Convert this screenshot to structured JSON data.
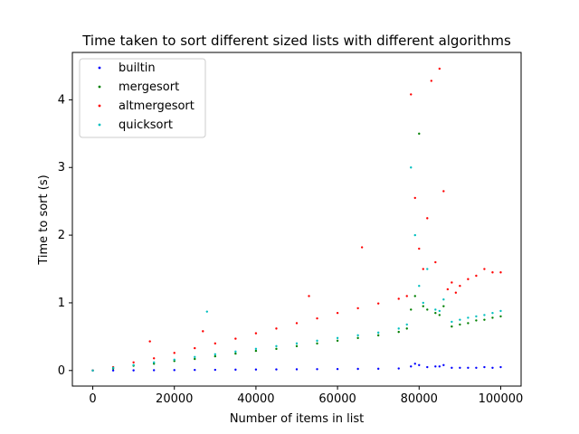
{
  "chart_data": {
    "type": "scatter",
    "title": "Time taken to sort different sized lists with different algorithms",
    "xlabel": "Number of items in list",
    "ylabel": "Time to sort (s)",
    "xlim": [
      -5000,
      105000
    ],
    "ylim": [
      -0.23,
      4.7
    ],
    "xticks": [
      "0",
      "20000",
      "40000",
      "60000",
      "80000",
      "100000"
    ],
    "yticks": [
      "0",
      "1",
      "2",
      "3",
      "4"
    ],
    "grid": false,
    "legend_position": "top-left",
    "series": [
      {
        "name": "builtin",
        "color": "#0000ff",
        "points": [
          [
            0,
            0
          ],
          [
            5000,
            0.001
          ],
          [
            10000,
            0.002
          ],
          [
            15000,
            0.004
          ],
          [
            20000,
            0.006
          ],
          [
            25000,
            0.008
          ],
          [
            30000,
            0.01
          ],
          [
            35000,
            0.012
          ],
          [
            40000,
            0.014
          ],
          [
            45000,
            0.016
          ],
          [
            50000,
            0.018
          ],
          [
            55000,
            0.02
          ],
          [
            60000,
            0.022
          ],
          [
            65000,
            0.024
          ],
          [
            70000,
            0.026
          ],
          [
            75000,
            0.03
          ],
          [
            78000,
            0.06
          ],
          [
            79000,
            0.1
          ],
          [
            80000,
            0.08
          ],
          [
            82000,
            0.05
          ],
          [
            84000,
            0.06
          ],
          [
            85000,
            0.06
          ],
          [
            86000,
            0.08
          ],
          [
            88000,
            0.04
          ],
          [
            90000,
            0.04
          ],
          [
            92000,
            0.04
          ],
          [
            94000,
            0.04
          ],
          [
            96000,
            0.05
          ],
          [
            98000,
            0.04
          ],
          [
            100000,
            0.05
          ]
        ]
      },
      {
        "name": "mergesort",
        "color": "#008000",
        "points": [
          [
            0,
            0
          ],
          [
            5000,
            0.03
          ],
          [
            10000,
            0.07
          ],
          [
            15000,
            0.1
          ],
          [
            20000,
            0.14
          ],
          [
            25000,
            0.17
          ],
          [
            30000,
            0.21
          ],
          [
            35000,
            0.25
          ],
          [
            40000,
            0.29
          ],
          [
            45000,
            0.32
          ],
          [
            50000,
            0.36
          ],
          [
            55000,
            0.4
          ],
          [
            60000,
            0.44
          ],
          [
            65000,
            0.48
          ],
          [
            70000,
            0.52
          ],
          [
            75000,
            0.57
          ],
          [
            77000,
            0.62
          ],
          [
            78000,
            0.9
          ],
          [
            79000,
            1.1
          ],
          [
            80000,
            3.5
          ],
          [
            81000,
            0.95
          ],
          [
            82000,
            0.9
          ],
          [
            84000,
            0.85
          ],
          [
            85000,
            0.82
          ],
          [
            86000,
            0.95
          ],
          [
            88000,
            0.65
          ],
          [
            90000,
            0.68
          ],
          [
            92000,
            0.7
          ],
          [
            94000,
            0.74
          ],
          [
            96000,
            0.75
          ],
          [
            98000,
            0.78
          ],
          [
            100000,
            0.8
          ]
        ]
      },
      {
        "name": "altmergesort",
        "color": "#ff0000",
        "points": [
          [
            0,
            0
          ],
          [
            5000,
            0.05
          ],
          [
            10000,
            0.12
          ],
          [
            14000,
            0.43
          ],
          [
            15000,
            0.18
          ],
          [
            20000,
            0.26
          ],
          [
            25000,
            0.33
          ],
          [
            27000,
            0.58
          ],
          [
            30000,
            0.4
          ],
          [
            35000,
            0.47
          ],
          [
            40000,
            0.55
          ],
          [
            45000,
            0.62
          ],
          [
            50000,
            0.7
          ],
          [
            53000,
            1.1
          ],
          [
            55000,
            0.77
          ],
          [
            60000,
            0.85
          ],
          [
            65000,
            0.92
          ],
          [
            66000,
            1.82
          ],
          [
            70000,
            0.99
          ],
          [
            75000,
            1.06
          ],
          [
            77000,
            1.1
          ],
          [
            78000,
            4.08
          ],
          [
            79000,
            2.55
          ],
          [
            80000,
            1.8
          ],
          [
            81000,
            1.5
          ],
          [
            82000,
            2.25
          ],
          [
            83000,
            4.28
          ],
          [
            84000,
            1.6
          ],
          [
            85000,
            4.46
          ],
          [
            86000,
            2.65
          ],
          [
            87000,
            1.2
          ],
          [
            88000,
            1.3
          ],
          [
            89000,
            1.15
          ],
          [
            90000,
            1.25
          ],
          [
            92000,
            1.35
          ],
          [
            94000,
            1.4
          ],
          [
            96000,
            1.5
          ],
          [
            98000,
            1.45
          ],
          [
            100000,
            1.45
          ]
        ]
      },
      {
        "name": "quicksort",
        "color": "#00bfbf",
        "points": [
          [
            0,
            0
          ],
          [
            5000,
            0.04
          ],
          [
            10000,
            0.08
          ],
          [
            15000,
            0.12
          ],
          [
            20000,
            0.16
          ],
          [
            25000,
            0.2
          ],
          [
            28000,
            0.87
          ],
          [
            30000,
            0.24
          ],
          [
            35000,
            0.28
          ],
          [
            40000,
            0.32
          ],
          [
            45000,
            0.36
          ],
          [
            50000,
            0.4
          ],
          [
            55000,
            0.44
          ],
          [
            60000,
            0.48
          ],
          [
            65000,
            0.52
          ],
          [
            70000,
            0.56
          ],
          [
            75000,
            0.62
          ],
          [
            77000,
            0.68
          ],
          [
            78000,
            3.0
          ],
          [
            79000,
            2.0
          ],
          [
            80000,
            1.25
          ],
          [
            81000,
            1.0
          ],
          [
            82000,
            1.5
          ],
          [
            84000,
            0.9
          ],
          [
            85000,
            0.88
          ],
          [
            86000,
            1.05
          ],
          [
            88000,
            0.72
          ],
          [
            90000,
            0.75
          ],
          [
            92000,
            0.78
          ],
          [
            94000,
            0.8
          ],
          [
            96000,
            0.82
          ],
          [
            98000,
            0.85
          ],
          [
            100000,
            0.88
          ]
        ]
      }
    ]
  }
}
